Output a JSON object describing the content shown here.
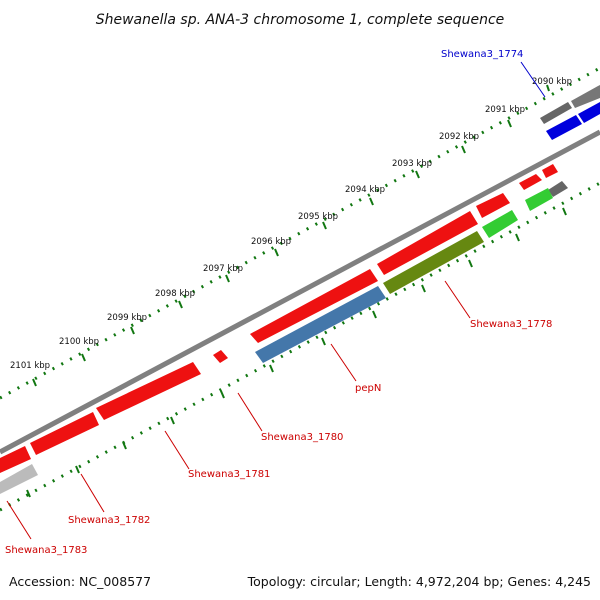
{
  "title": "Shewanella sp. ANA-3 chromosome 1, complete sequence",
  "footer": {
    "accession": "Accession: NC_008577",
    "summary": "Topology: circular; Length: 4,972,204 bp; Genes: 4,245"
  },
  "tick_labels": [
    "2090 kbp",
    "2091 kbp",
    "2092 kbp",
    "2093 kbp",
    "2094 kbp",
    "2095 kbp",
    "2096 kbp",
    "2097 kbp",
    "2098 kbp",
    "2099 kbp",
    "2100 kbp",
    "2101 kbp"
  ],
  "gene_labels": [
    {
      "id": "shewana3_1774",
      "text": "Shewana3_1774",
      "color": "#0000cc"
    },
    {
      "id": "shewana3_1778",
      "text": "Shewana3_1778",
      "color": "#cc0000"
    },
    {
      "id": "pepn",
      "text": "pepN",
      "color": "#cc0000"
    },
    {
      "id": "shewana3_1780",
      "text": "Shewana3_1780",
      "color": "#cc0000"
    },
    {
      "id": "shewana3_1781",
      "text": "Shewana3_1781",
      "color": "#cc0000"
    },
    {
      "id": "shewana3_1782",
      "text": "Shewana3_1782",
      "color": "#cc0000"
    },
    {
      "id": "shewana3_1783",
      "text": "Shewana3_1783",
      "color": "#cc0000"
    }
  ],
  "colors": {
    "gene_red": "#ee1111",
    "gene_gray": "#666666",
    "gene_blue": "#0000dd",
    "gene_green": "#33cc33",
    "gene_olive": "#668811",
    "gene_steelblue": "#4477aa",
    "gene_lightgray": "#bbbbbb",
    "backbone": "#888888",
    "tick_green": "#117711"
  }
}
